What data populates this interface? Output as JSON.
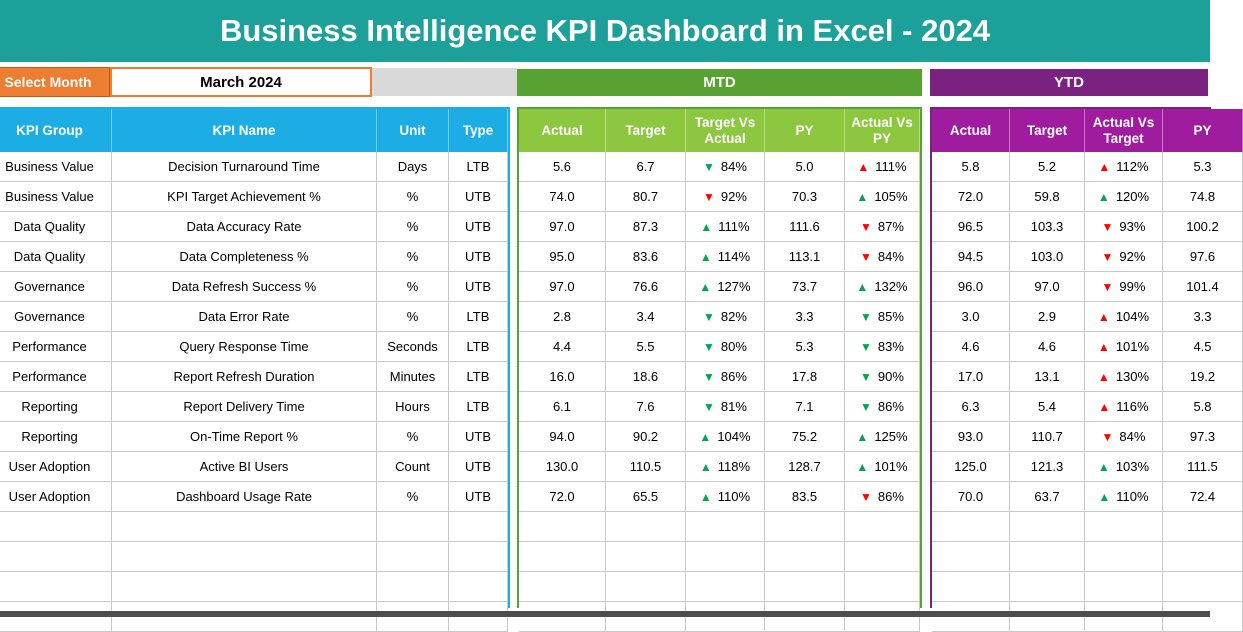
{
  "title": "Business Intelligence KPI Dashboard in Excel - 2024",
  "select_month": {
    "label": "Select Month",
    "value": "March 2024"
  },
  "sections": {
    "mtd": "MTD",
    "ytd": "YTD"
  },
  "left_headers": [
    "KPI Group",
    "KPI Name",
    "Unit",
    "Type"
  ],
  "mtd_headers": [
    "Actual",
    "Target",
    "Target Vs Actual",
    "PY",
    "Actual Vs PY"
  ],
  "ytd_headers": [
    "Actual",
    "Target",
    "Actual Vs Target",
    "PY"
  ],
  "colors": {
    "title_teal": "#1CA09A",
    "select_orange": "#ED7D31",
    "kpi_header_blue": "#1CADE4",
    "mtd_banner_green": "#57A233",
    "mtd_header_green": "#8DC63F",
    "ytd_banner_purple": "#7B2182",
    "ytd_header_magenta": "#A01C9E",
    "triangle_up_down_green": "#00A651",
    "triangle_up_down_red": "#FF0000"
  },
  "empty_rows": 4,
  "rows": [
    {
      "group": "Business Value",
      "name": "Decision Turnaround Time",
      "unit": "Days",
      "type": "LTB",
      "mtd": {
        "actual": "5.6",
        "target": "6.7",
        "tva": {
          "dir": "down",
          "color": "green",
          "pct": "84%"
        },
        "py": "5.0",
        "avp": {
          "dir": "up",
          "color": "red",
          "pct": "111%"
        }
      },
      "ytd": {
        "actual": "5.8",
        "target": "5.2",
        "avt": {
          "dir": "up",
          "color": "red",
          "pct": "112%"
        },
        "py": "5.3"
      }
    },
    {
      "group": "Business Value",
      "name": "KPI Target Achievement %",
      "unit": "%",
      "type": "UTB",
      "mtd": {
        "actual": "74.0",
        "target": "80.7",
        "tva": {
          "dir": "down",
          "color": "red",
          "pct": "92%"
        },
        "py": "70.3",
        "avp": {
          "dir": "up",
          "color": "green",
          "pct": "105%"
        }
      },
      "ytd": {
        "actual": "72.0",
        "target": "59.8",
        "avt": {
          "dir": "up",
          "color": "green",
          "pct": "120%"
        },
        "py": "74.8"
      }
    },
    {
      "group": "Data Quality",
      "name": "Data Accuracy Rate",
      "unit": "%",
      "type": "UTB",
      "mtd": {
        "actual": "97.0",
        "target": "87.3",
        "tva": {
          "dir": "up",
          "color": "green",
          "pct": "111%"
        },
        "py": "111.6",
        "avp": {
          "dir": "down",
          "color": "red",
          "pct": "87%"
        }
      },
      "ytd": {
        "actual": "96.5",
        "target": "103.3",
        "avt": {
          "dir": "down",
          "color": "red",
          "pct": "93%"
        },
        "py": "100.2"
      }
    },
    {
      "group": "Data Quality",
      "name": "Data Completeness %",
      "unit": "%",
      "type": "UTB",
      "mtd": {
        "actual": "95.0",
        "target": "83.6",
        "tva": {
          "dir": "up",
          "color": "green",
          "pct": "114%"
        },
        "py": "113.1",
        "avp": {
          "dir": "down",
          "color": "red",
          "pct": "84%"
        }
      },
      "ytd": {
        "actual": "94.5",
        "target": "103.0",
        "avt": {
          "dir": "down",
          "color": "red",
          "pct": "92%"
        },
        "py": "97.6"
      }
    },
    {
      "group": "Governance",
      "name": "Data Refresh Success %",
      "unit": "%",
      "type": "UTB",
      "mtd": {
        "actual": "97.0",
        "target": "76.6",
        "tva": {
          "dir": "up",
          "color": "green",
          "pct": "127%"
        },
        "py": "73.7",
        "avp": {
          "dir": "up",
          "color": "green",
          "pct": "132%"
        }
      },
      "ytd": {
        "actual": "96.0",
        "target": "97.0",
        "avt": {
          "dir": "down",
          "color": "red",
          "pct": "99%"
        },
        "py": "101.4"
      }
    },
    {
      "group": "Governance",
      "name": "Data Error Rate",
      "unit": "%",
      "type": "LTB",
      "mtd": {
        "actual": "2.8",
        "target": "3.4",
        "tva": {
          "dir": "down",
          "color": "green",
          "pct": "82%"
        },
        "py": "3.3",
        "avp": {
          "dir": "down",
          "color": "green",
          "pct": "85%"
        }
      },
      "ytd": {
        "actual": "3.0",
        "target": "2.9",
        "avt": {
          "dir": "up",
          "color": "red",
          "pct": "104%"
        },
        "py": "3.3"
      }
    },
    {
      "group": "Performance",
      "name": "Query Response Time",
      "unit": "Seconds",
      "type": "LTB",
      "mtd": {
        "actual": "4.4",
        "target": "5.5",
        "tva": {
          "dir": "down",
          "color": "green",
          "pct": "80%"
        },
        "py": "5.3",
        "avp": {
          "dir": "down",
          "color": "green",
          "pct": "83%"
        }
      },
      "ytd": {
        "actual": "4.6",
        "target": "4.6",
        "avt": {
          "dir": "up",
          "color": "red",
          "pct": "101%"
        },
        "py": "4.5"
      }
    },
    {
      "group": "Performance",
      "name": "Report Refresh Duration",
      "unit": "Minutes",
      "type": "LTB",
      "mtd": {
        "actual": "16.0",
        "target": "18.6",
        "tva": {
          "dir": "down",
          "color": "green",
          "pct": "86%"
        },
        "py": "17.8",
        "avp": {
          "dir": "down",
          "color": "green",
          "pct": "90%"
        }
      },
      "ytd": {
        "actual": "17.0",
        "target": "13.1",
        "avt": {
          "dir": "up",
          "color": "red",
          "pct": "130%"
        },
        "py": "19.2"
      }
    },
    {
      "group": "Reporting",
      "name": "Report Delivery Time",
      "unit": "Hours",
      "type": "LTB",
      "mtd": {
        "actual": "6.1",
        "target": "7.6",
        "tva": {
          "dir": "down",
          "color": "green",
          "pct": "81%"
        },
        "py": "7.1",
        "avp": {
          "dir": "down",
          "color": "green",
          "pct": "86%"
        }
      },
      "ytd": {
        "actual": "6.3",
        "target": "5.4",
        "avt": {
          "dir": "up",
          "color": "red",
          "pct": "116%"
        },
        "py": "5.8"
      }
    },
    {
      "group": "Reporting",
      "name": "On-Time Report %",
      "unit": "%",
      "type": "UTB",
      "mtd": {
        "actual": "94.0",
        "target": "90.2",
        "tva": {
          "dir": "up",
          "color": "green",
          "pct": "104%"
        },
        "py": "75.2",
        "avp": {
          "dir": "up",
          "color": "green",
          "pct": "125%"
        }
      },
      "ytd": {
        "actual": "93.0",
        "target": "110.7",
        "avt": {
          "dir": "down",
          "color": "red",
          "pct": "84%"
        },
        "py": "97.3"
      }
    },
    {
      "group": "User Adoption",
      "name": "Active BI Users",
      "unit": "Count",
      "type": "UTB",
      "mtd": {
        "actual": "130.0",
        "target": "110.5",
        "tva": {
          "dir": "up",
          "color": "green",
          "pct": "118%"
        },
        "py": "128.7",
        "avp": {
          "dir": "up",
          "color": "green",
          "pct": "101%"
        }
      },
      "ytd": {
        "actual": "125.0",
        "target": "121.3",
        "avt": {
          "dir": "up",
          "color": "green",
          "pct": "103%"
        },
        "py": "111.5"
      }
    },
    {
      "group": "User Adoption",
      "name": "Dashboard Usage Rate",
      "unit": "%",
      "type": "UTB",
      "mtd": {
        "actual": "72.0",
        "target": "65.5",
        "tva": {
          "dir": "up",
          "color": "green",
          "pct": "110%"
        },
        "py": "83.5",
        "avp": {
          "dir": "down",
          "color": "red",
          "pct": "86%"
        }
      },
      "ytd": {
        "actual": "70.0",
        "target": "63.7",
        "avt": {
          "dir": "up",
          "color": "green",
          "pct": "110%"
        },
        "py": "72.4"
      }
    }
  ]
}
